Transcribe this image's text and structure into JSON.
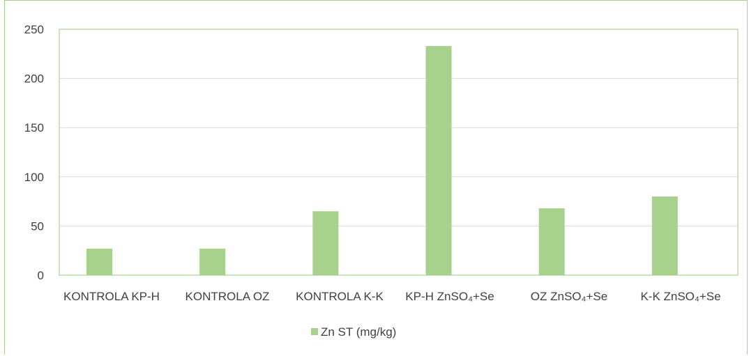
{
  "chart_data": {
    "type": "bar",
    "title": "",
    "xlabel": "",
    "ylabel": "",
    "categories": [
      "KONTROLA KP-H",
      "KONTROLA OZ",
      "KONTROLA K-K",
      "KP-H ZnSO₄+Se",
      "OZ ZnSO₄+Se",
      "K-K ZnSO₄+Se"
    ],
    "series": [
      {
        "name": "Zn ST (mg/kg)",
        "values": [
          27,
          27,
          65,
          233,
          68,
          80
        ],
        "color": "#a9d18e"
      }
    ],
    "ylim": [
      0,
      250
    ],
    "yticks": [
      0,
      50,
      100,
      150,
      200,
      250
    ],
    "grid": true,
    "legend_position": "bottom",
    "plot_border_color": "#a9d18e",
    "gridline_color": "#d9d9d9"
  }
}
